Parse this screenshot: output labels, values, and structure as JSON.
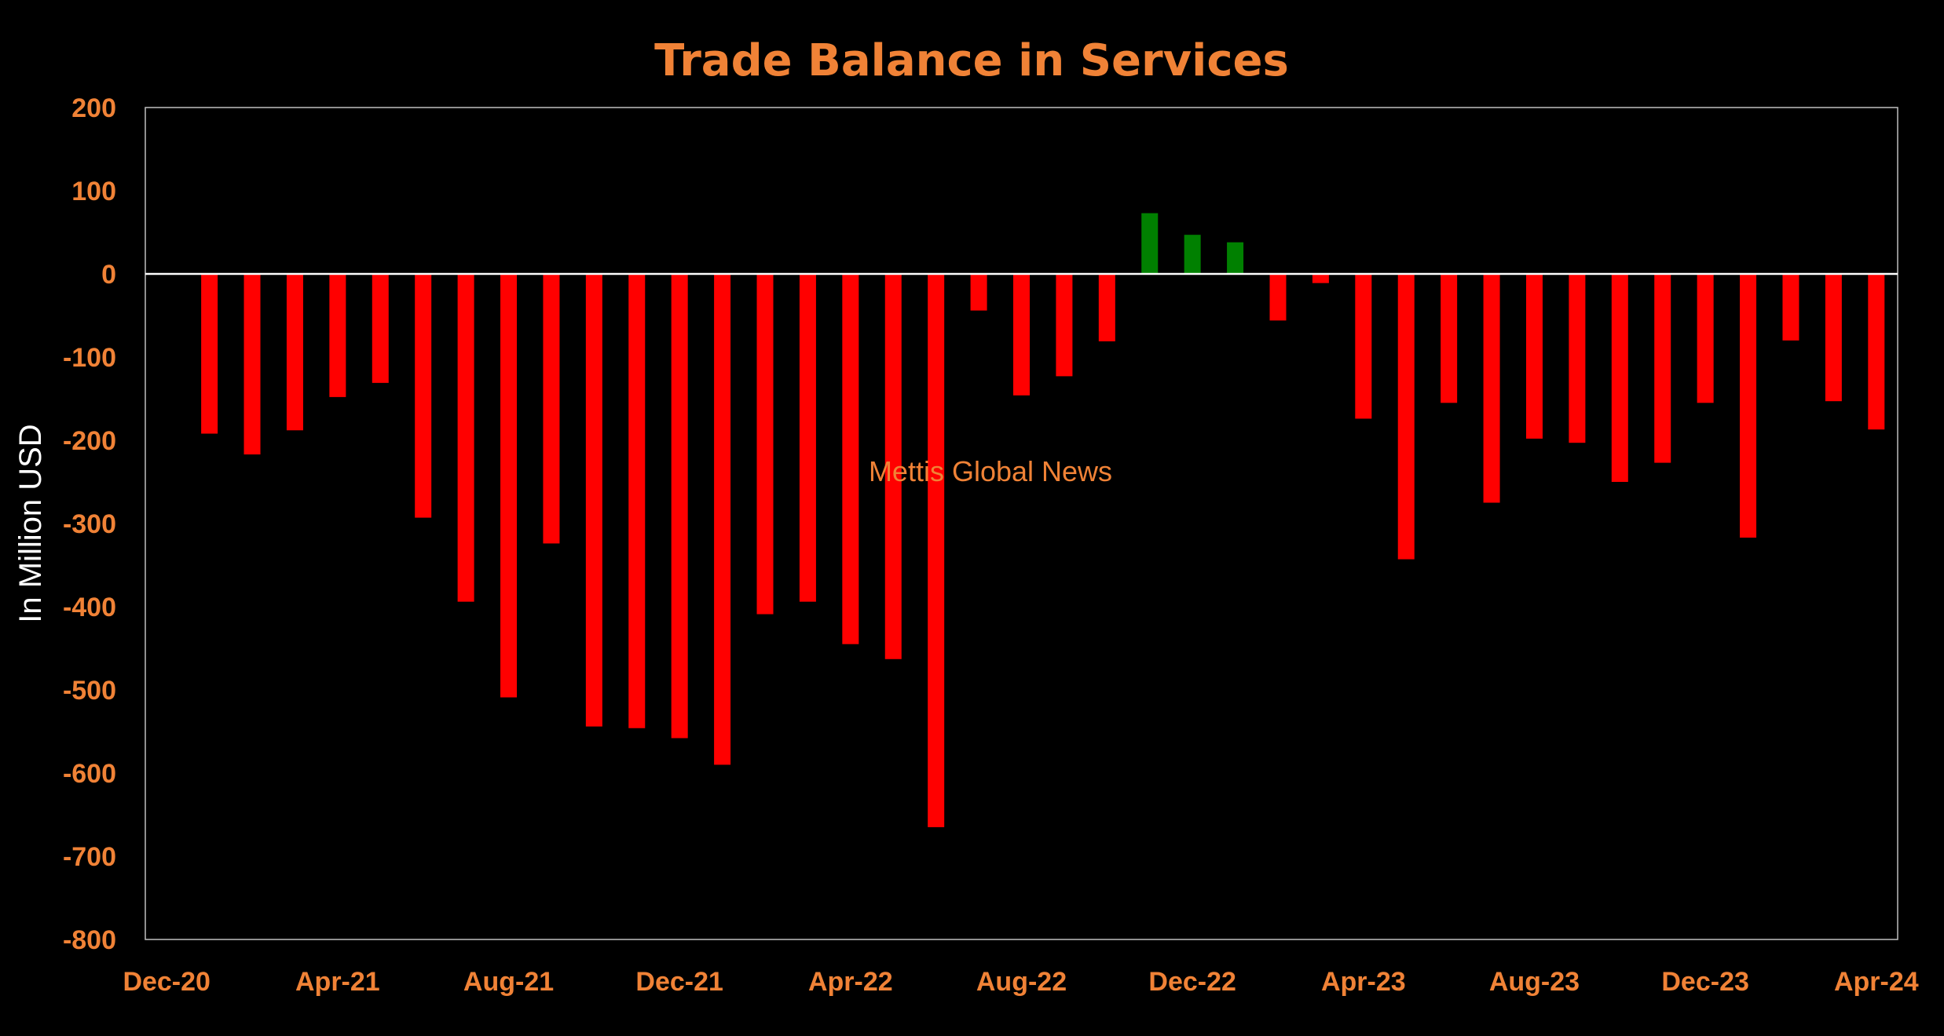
{
  "chart_data": {
    "type": "bar",
    "title": "Trade Balance in Services",
    "xlabel": "",
    "ylabel": "In Million USD",
    "ylim": [
      -800,
      200
    ],
    "yticks": [
      200,
      100,
      0,
      -100,
      -200,
      -300,
      -400,
      -500,
      -600,
      -700,
      -800
    ],
    "ytick_labels": [
      "200",
      "100",
      "0",
      "-100",
      "-200",
      "-300",
      "-400",
      "-500",
      "-600",
      "-700",
      "-800"
    ],
    "xtick_labels": [
      "Dec-20",
      "Apr-21",
      "Aug-21",
      "Dec-21",
      "Apr-22",
      "Aug-22",
      "Dec-22",
      "Apr-23",
      "Aug-23",
      "Dec-23",
      "Apr-24"
    ],
    "categories": [
      "Dec-20",
      "Jan-21",
      "Feb-21",
      "Mar-21",
      "Apr-21",
      "May-21",
      "Jun-21",
      "Jul-21",
      "Aug-21",
      "Sep-21",
      "Oct-21",
      "Nov-21",
      "Dec-21",
      "Jan-22",
      "Feb-22",
      "Mar-22",
      "Apr-22",
      "May-22",
      "Jun-22",
      "Jul-22",
      "Aug-22",
      "Sep-22",
      "Oct-22",
      "Nov-22",
      "Dec-22",
      "Jan-23",
      "Feb-23",
      "Mar-23",
      "Apr-23",
      "May-23",
      "Jun-23",
      "Jul-23",
      "Aug-23",
      "Sep-23",
      "Oct-23",
      "Nov-23",
      "Dec-23",
      "Jan-24",
      "Feb-24",
      "Mar-24",
      "Apr-24"
    ],
    "values": [
      null,
      -192,
      -217,
      -188,
      -148,
      -131,
      -293,
      -394,
      -509,
      -324,
      -544,
      -546,
      -558,
      -590,
      -409,
      -394,
      -445,
      -463,
      -665,
      -44,
      -146,
      -123,
      -81,
      73,
      47,
      38,
      -56,
      -11,
      -174,
      -343,
      -155,
      -275,
      -198,
      -203,
      -250,
      -227,
      -155,
      -317,
      -80,
      -153,
      -187
    ],
    "grid": false,
    "legend": "none",
    "colors": {
      "negative": "#ff0000",
      "positive": "#008000",
      "text": "#f08236",
      "ylabel": "#ffffff",
      "axis": "#ffffff",
      "background": "#000000"
    }
  },
  "watermark": "Mettis Global News"
}
